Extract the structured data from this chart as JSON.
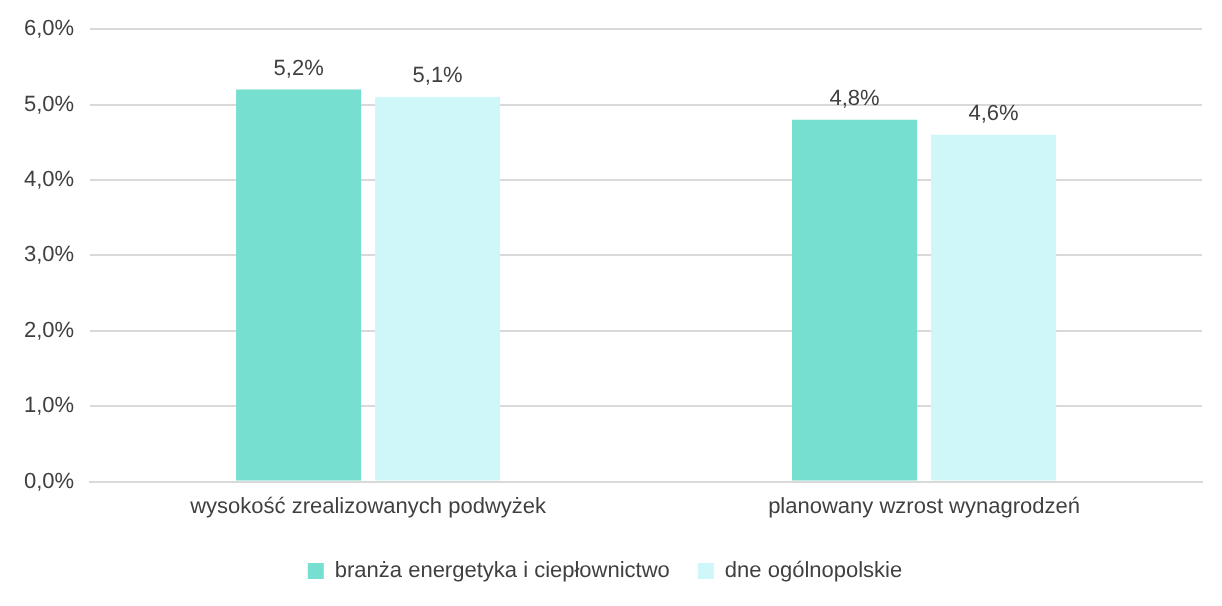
{
  "chart_data": {
    "type": "bar",
    "categories": [
      "wysokość zrealizowanych podwyżek",
      "planowany wzrost wynagrodzeń"
    ],
    "series": [
      {
        "name": "branża energetyka i ciepłownictwo",
        "color": "#76dfcf",
        "values": [
          5.2,
          4.8
        ],
        "value_labels": [
          "5,2%",
          "4,8%"
        ]
      },
      {
        "name": "dne ogólnopolskie",
        "color": "#cff7fa",
        "values": [
          5.1,
          4.6
        ],
        "value_labels": [
          "5,1%",
          "4,6%"
        ]
      }
    ],
    "ylim": [
      0,
      6
    ],
    "yticks": [
      {
        "value": 0,
        "label": "0,0%"
      },
      {
        "value": 1,
        "label": "1,0%"
      },
      {
        "value": 2,
        "label": "2,0%"
      },
      {
        "value": 3,
        "label": "3,0%"
      },
      {
        "value": 4,
        "label": "4,0%"
      },
      {
        "value": 5,
        "label": "5,0%"
      },
      {
        "value": 6,
        "label": "6,0%"
      }
    ],
    "grid": "y",
    "legend": "bottom"
  }
}
